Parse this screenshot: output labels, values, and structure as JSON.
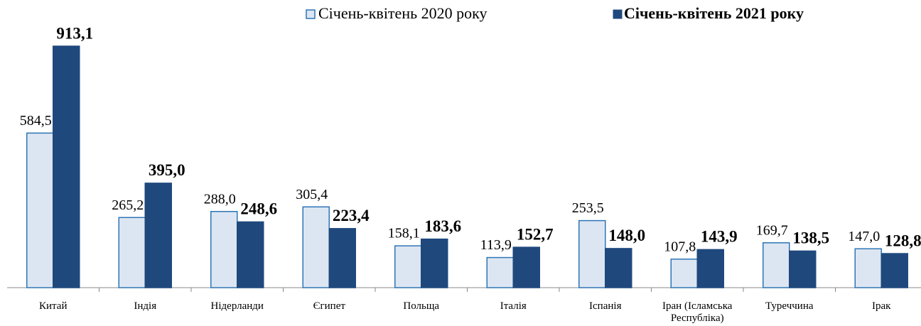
{
  "chart_data": {
    "type": "bar",
    "categories": [
      "Китай",
      "Індія",
      "Нідерланди",
      "Єгипет",
      "Польща",
      "Італія",
      "Іспанія",
      "Іран (Ісламська Республіка)",
      "Туреччина",
      "Ірак"
    ],
    "series": [
      {
        "name": "Січень-квітень 2020 року",
        "color": "#dce6f2",
        "values": [
          584.5,
          265.2,
          288.0,
          305.4,
          158.1,
          113.9,
          253.5,
          107.8,
          169.7,
          147.0
        ],
        "value_labels": [
          "584,5",
          "265,2",
          "288,0",
          "305,4",
          "158,1",
          "113,9",
          "253,5",
          "107,8",
          "169,7",
          "147,0"
        ]
      },
      {
        "name": "Січень-квітень 2021 року",
        "color": "#1f497d",
        "values": [
          913.1,
          395.0,
          248.6,
          223.4,
          183.6,
          152.7,
          148.0,
          143.9,
          138.5,
          128.8
        ],
        "value_labels": [
          "913,1",
          "395,0",
          "248,6",
          "223,4",
          "183,6",
          "152,7",
          "148,0",
          "143,9",
          "138,5",
          "128,8"
        ]
      }
    ]
  }
}
